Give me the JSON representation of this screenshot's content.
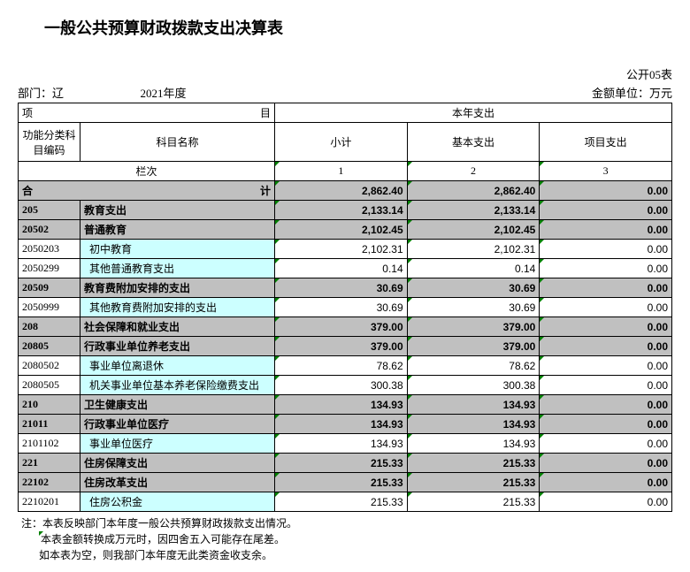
{
  "title": "一般公共预算财政拨款支出决算表",
  "meta": {
    "form_no": "公开05表",
    "dept_label": "部门：辽",
    "year": "2021年度",
    "unit": "金额单位：万元"
  },
  "headers": {
    "item": "项",
    "item_tail": "目",
    "this_year": "本年支出",
    "func_code": "功能分类科目编码",
    "subj_name": "科目名称",
    "subtotal": "小计",
    "basic": "基本支出",
    "project": "项目支出",
    "colnum_label": "栏次",
    "c1": "1",
    "c2": "2",
    "c3": "3",
    "total_label": "合",
    "total_tail": "计"
  },
  "rows": [
    {
      "code": "",
      "name_pre": "合",
      "name": "",
      "subtotal": "2,862.40",
      "basic": "2,862.40",
      "project": "0.00",
      "shade": true,
      "bold": true,
      "is_total": true
    },
    {
      "code": "205",
      "name": "教育支出",
      "subtotal": "2,133.14",
      "basic": "2,133.14",
      "project": "0.00",
      "shade": true,
      "bold": true
    },
    {
      "code": "20502",
      "name": "普通教育",
      "subtotal": "2,102.45",
      "basic": "2,102.45",
      "project": "0.00",
      "shade": true,
      "bold": true
    },
    {
      "code": "2050203",
      "name": "  初中教育",
      "subtotal": "2,102.31",
      "basic": "2,102.31",
      "project": "0.00",
      "cyan": true
    },
    {
      "code": "2050299",
      "name": "  其他普通教育支出",
      "subtotal": "0.14",
      "basic": "0.14",
      "project": "0.00",
      "cyan": true
    },
    {
      "code": "20509",
      "name": "教育费附加安排的支出",
      "subtotal": "30.69",
      "basic": "30.69",
      "project": "0.00",
      "shade": true,
      "bold": true
    },
    {
      "code": "2050999",
      "name": "  其他教育费附加安排的支出",
      "subtotal": "30.69",
      "basic": "30.69",
      "project": "0.00",
      "cyan": true
    },
    {
      "code": "208",
      "name": "社会保障和就业支出",
      "subtotal": "379.00",
      "basic": "379.00",
      "project": "0.00",
      "shade": true,
      "bold": true
    },
    {
      "code": "20805",
      "name": "行政事业单位养老支出",
      "subtotal": "379.00",
      "basic": "379.00",
      "project": "0.00",
      "shade": true,
      "bold": true
    },
    {
      "code": "2080502",
      "name": "  事业单位离退休",
      "subtotal": "78.62",
      "basic": "78.62",
      "project": "0.00",
      "cyan": true
    },
    {
      "code": "2080505",
      "name": "  机关事业单位基本养老保险缴费支出",
      "subtotal": "300.38",
      "basic": "300.38",
      "project": "0.00",
      "cyan": true
    },
    {
      "code": "210",
      "name": "卫生健康支出",
      "subtotal": "134.93",
      "basic": "134.93",
      "project": "0.00",
      "shade": true,
      "bold": true
    },
    {
      "code": "21011",
      "name": "行政事业单位医疗",
      "subtotal": "134.93",
      "basic": "134.93",
      "project": "0.00",
      "shade": true,
      "bold": true
    },
    {
      "code": "2101102",
      "name": "  事业单位医疗",
      "subtotal": "134.93",
      "basic": "134.93",
      "project": "0.00",
      "cyan": true
    },
    {
      "code": "221",
      "name": "住房保障支出",
      "subtotal": "215.33",
      "basic": "215.33",
      "project": "0.00",
      "shade": true,
      "bold": true
    },
    {
      "code": "22102",
      "name": "住房改革支出",
      "subtotal": "215.33",
      "basic": "215.33",
      "project": "0.00",
      "shade": true,
      "bold": true
    },
    {
      "code": "2210201",
      "name": "  住房公积金",
      "subtotal": "215.33",
      "basic": "215.33",
      "project": "0.00",
      "cyan": true
    }
  ],
  "notes": [
    "注：本表反映部门本年度一般公共预算财政拨款支出情况。",
    "本表金额转换成万元时，因四舍五入可能存在尾差。",
    "如本表为空，则我部门本年度无此类资金收支余。"
  ],
  "colors": {
    "shade": "#c0c0c0",
    "cyan": "#ccffff",
    "triangle": "#008000"
  }
}
